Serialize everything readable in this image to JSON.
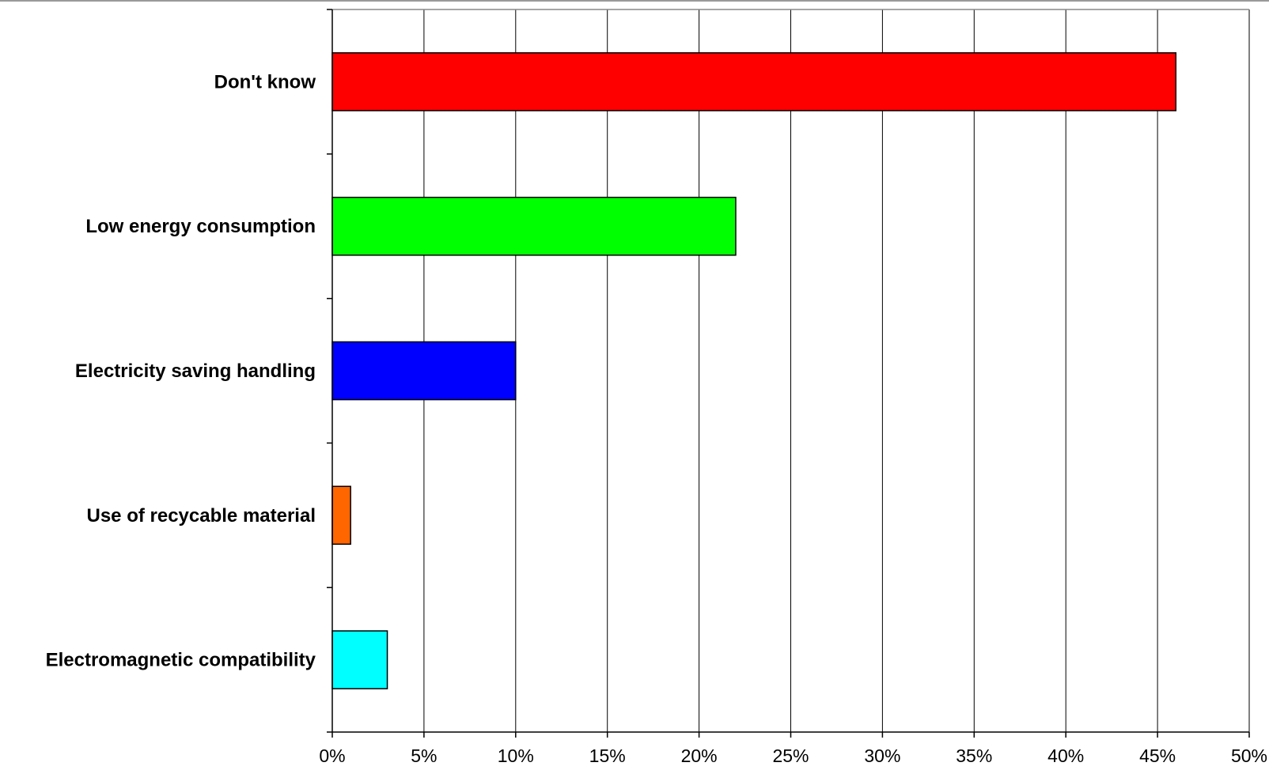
{
  "chart_data": {
    "type": "bar",
    "orientation": "horizontal",
    "title": "",
    "xlabel": "",
    "ylabel": "",
    "categories": [
      "Don't know",
      "Low energy consumption",
      "Electricity saving handling",
      "Use of recycable material",
      "Electromagnetic compatibility"
    ],
    "values": [
      46,
      22,
      10,
      1,
      3
    ],
    "colors": [
      "#ff0000",
      "#00ff00",
      "#0000ff",
      "#ff6600",
      "#00ffff"
    ],
    "xlim": [
      0,
      50
    ],
    "ticks": [
      0,
      5,
      10,
      15,
      20,
      25,
      30,
      35,
      40,
      45,
      50
    ],
    "tick_labels": [
      "0%",
      "5%",
      "10%",
      "15%",
      "20%",
      "25%",
      "30%",
      "35%",
      "40%",
      "45%",
      "50%"
    ],
    "grid": "vertical",
    "legend": "none"
  }
}
